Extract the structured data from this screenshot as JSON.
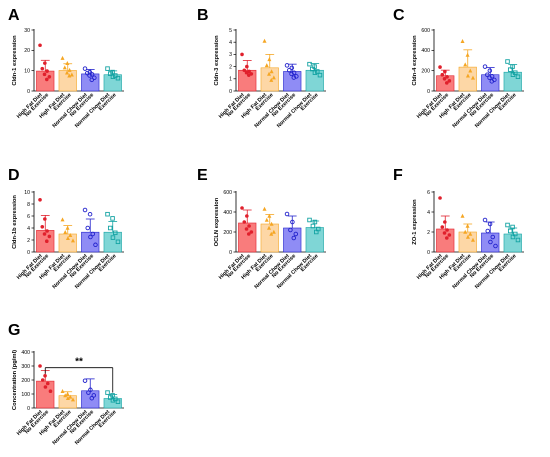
{
  "colors": {
    "bar_fills": [
      "#f97c7c",
      "#fdd7a6",
      "#8f8cf5",
      "#7fd6d6"
    ],
    "marker_colors": [
      "#e0202c",
      "#f5a623",
      "#2222cc",
      "#14a3a3"
    ],
    "error_colors": [
      "#e0202c",
      "#f5a623",
      "#2222cc",
      "#14a3a3"
    ],
    "axis": "#000000"
  },
  "chart_data": [
    {
      "type": "bar",
      "panel": "A",
      "ylabel": "Cldn-1 expression",
      "yticks": [
        "0",
        "10",
        "20",
        "30"
      ],
      "ylim": [
        0,
        30
      ],
      "categories": [
        "High Fat Diet\nNo Exercise",
        "High Fat Diet\nExercise",
        "Normal Chow Diet\nNo Exercise",
        "Normal Chow Diet\nExercise"
      ],
      "values": [
        9.8,
        10.1,
        8.4,
        8.0
      ],
      "errors": [
        5.3,
        3.3,
        2.2,
        1.9
      ],
      "points": [
        [
          22.5,
          13.7,
          11.0,
          9.8,
          8.2,
          7.0,
          5.7
        ],
        [
          16.2,
          13.7,
          11.5,
          10.3,
          9.0,
          8.0,
          7.5
        ],
        [
          11.0,
          9.3,
          8.8,
          8.2,
          7.6,
          6.5,
          5.5
        ],
        [
          11.0,
          9.3,
          8.5,
          7.6,
          7.0,
          6.3
        ]
      ],
      "significance": []
    },
    {
      "type": "bar",
      "panel": "B",
      "ylabel": "Cldn-3 expression",
      "yticks": [
        "0",
        "1",
        "2",
        "3",
        "4",
        "5"
      ],
      "ylim": [
        0,
        5
      ],
      "categories": [
        "High Fat Diet\nNo Exercise",
        "High Fat Diet\nExercise",
        "Normal Chow Diet\nNo Exercise",
        "Normal Chow Diet\nExercise"
      ],
      "values": [
        1.7,
        1.9,
        1.6,
        1.7
      ],
      "errors": [
        0.8,
        1.1,
        0.6,
        0.55
      ],
      "points": [
        [
          3.0,
          2.0,
          1.7,
          1.6,
          1.5,
          1.4,
          1.3
        ],
        [
          4.1,
          2.6,
          2.1,
          1.6,
          1.4,
          1.1,
          0.9
        ],
        [
          2.1,
          1.9,
          1.7,
          1.5,
          1.4,
          1.2,
          1.1
        ],
        [
          2.2,
          2.0,
          1.8,
          1.6,
          1.5,
          1.3
        ]
      ],
      "significance": []
    },
    {
      "type": "bar",
      "panel": "C",
      "ylabel": "Cldn-4 expression",
      "yticks": [
        "0",
        "200",
        "400",
        "600"
      ],
      "ylim": [
        0,
        600
      ],
      "categories": [
        "High Fat Diet\nNo Exercise",
        "High Fat Diet\nExercise",
        "Normal Chow Diet\nNo Exercise",
        "Normal Chow Diet\nExercise"
      ],
      "values": [
        150,
        235,
        160,
        185
      ],
      "errors": [
        55,
        170,
        70,
        75
      ],
      "points": [
        [
          235,
          190,
          160,
          140,
          120,
          100,
          80
        ],
        [
          490,
          355,
          260,
          200,
          150,
          130
        ],
        [
          240,
          200,
          160,
          145,
          130,
          110,
          95
        ],
        [
          290,
          240,
          210,
          180,
          160,
          140
        ]
      ],
      "significance": []
    },
    {
      "type": "bar",
      "panel": "D",
      "ylabel": "Cldn-1b expression",
      "yticks": [
        "0",
        "2",
        "4",
        "6",
        "8",
        "10"
      ],
      "ylim": [
        0,
        10
      ],
      "categories": [
        "High Fat Diet\nNo Exercise",
        "High Fat Diet\nExercise",
        "Normal Chow Diet\nNo Exercise",
        "Normal Chow Diet\nExercise"
      ],
      "values": [
        3.6,
        3.0,
        3.3,
        3.3
      ],
      "errors": [
        2.5,
        1.4,
        2.2,
        1.8
      ],
      "points": [
        [
          8.7,
          5.5,
          4.2,
          3.5,
          3.0,
          2.6,
          1.8
        ],
        [
          5.4,
          4.0,
          3.3,
          2.8,
          2.3,
          1.9
        ],
        [
          7.0,
          6.3,
          4.0,
          3.0,
          2.5,
          1.2
        ],
        [
          6.3,
          5.6,
          4.0,
          3.2,
          2.4,
          1.7
        ]
      ],
      "significance": []
    },
    {
      "type": "bar",
      "panel": "E",
      "ylabel": "OCLN expression",
      "yticks": [
        "0",
        "200",
        "400",
        "600"
      ],
      "ylim": [
        0,
        600
      ],
      "categories": [
        "High Fat Diet\nNo Exercise",
        "High Fat Diet\nExercise",
        "Normal Chow Diet\nNo Exercise",
        "Normal Chow Diet\nExercise"
      ],
      "values": [
        290,
        280,
        240,
        245
      ],
      "errors": [
        130,
        95,
        120,
        65
      ],
      "points": [
        [
          440,
          360,
          300,
          260,
          230,
          200,
          180
        ],
        [
          430,
          360,
          320,
          280,
          240,
          200,
          180
        ],
        [
          380,
          300,
          220,
          180,
          140
        ],
        [
          320,
          300,
          260,
          230,
          200
        ]
      ],
      "significance": []
    },
    {
      "type": "bar",
      "panel": "F",
      "ylabel": "ZO-1 expression",
      "yticks": [
        "0",
        "2",
        "4",
        "6"
      ],
      "ylim": [
        0,
        6
      ],
      "categories": [
        "High Fat Diet\nNo Exercise",
        "High Fat Diet\nExercise",
        "Normal Chow Diet\nNo Exercise",
        "Normal Chow Diet\nExercise"
      ],
      "values": [
        2.3,
        2.0,
        1.9,
        1.8
      ],
      "errors": [
        1.3,
        0.8,
        1.1,
        0.6
      ],
      "points": [
        [
          5.4,
          3.0,
          2.5,
          2.2,
          1.9,
          1.7,
          1.4
        ],
        [
          3.6,
          2.6,
          2.0,
          1.8,
          1.5,
          1.2
        ],
        [
          3.2,
          2.8,
          2.1,
          1.5,
          1.0,
          0.6
        ],
        [
          2.7,
          2.5,
          2.1,
          1.8,
          1.5,
          1.2
        ]
      ],
      "significance": []
    },
    {
      "type": "bar",
      "panel": "G",
      "ylabel": "Concentration (pg/ml)",
      "yticks": [
        "0",
        "100",
        "200",
        "300",
        "400"
      ],
      "ylim": [
        0,
        400
      ],
      "categories": [
        "High Fat Diet\nNo Exercise",
        "High Fat Diet\nExercise",
        "Normal Chow Diet\nNo Exercise",
        "Normal Chow Diet\nExercise"
      ],
      "values": [
        192,
        88,
        123,
        68
      ],
      "errors": [
        75,
        28,
        85,
        28
      ],
      "points": [
        [
          300,
          230,
          200,
          175,
          150,
          120
        ],
        [
          120,
          100,
          90,
          80,
          70,
          60
        ],
        [
          195,
          130,
          110,
          90,
          70
        ],
        [
          110,
          90,
          75,
          65,
          55,
          45
        ]
      ],
      "significance": [
        {
          "from": 0,
          "to": 3,
          "label": "**"
        }
      ]
    }
  ]
}
